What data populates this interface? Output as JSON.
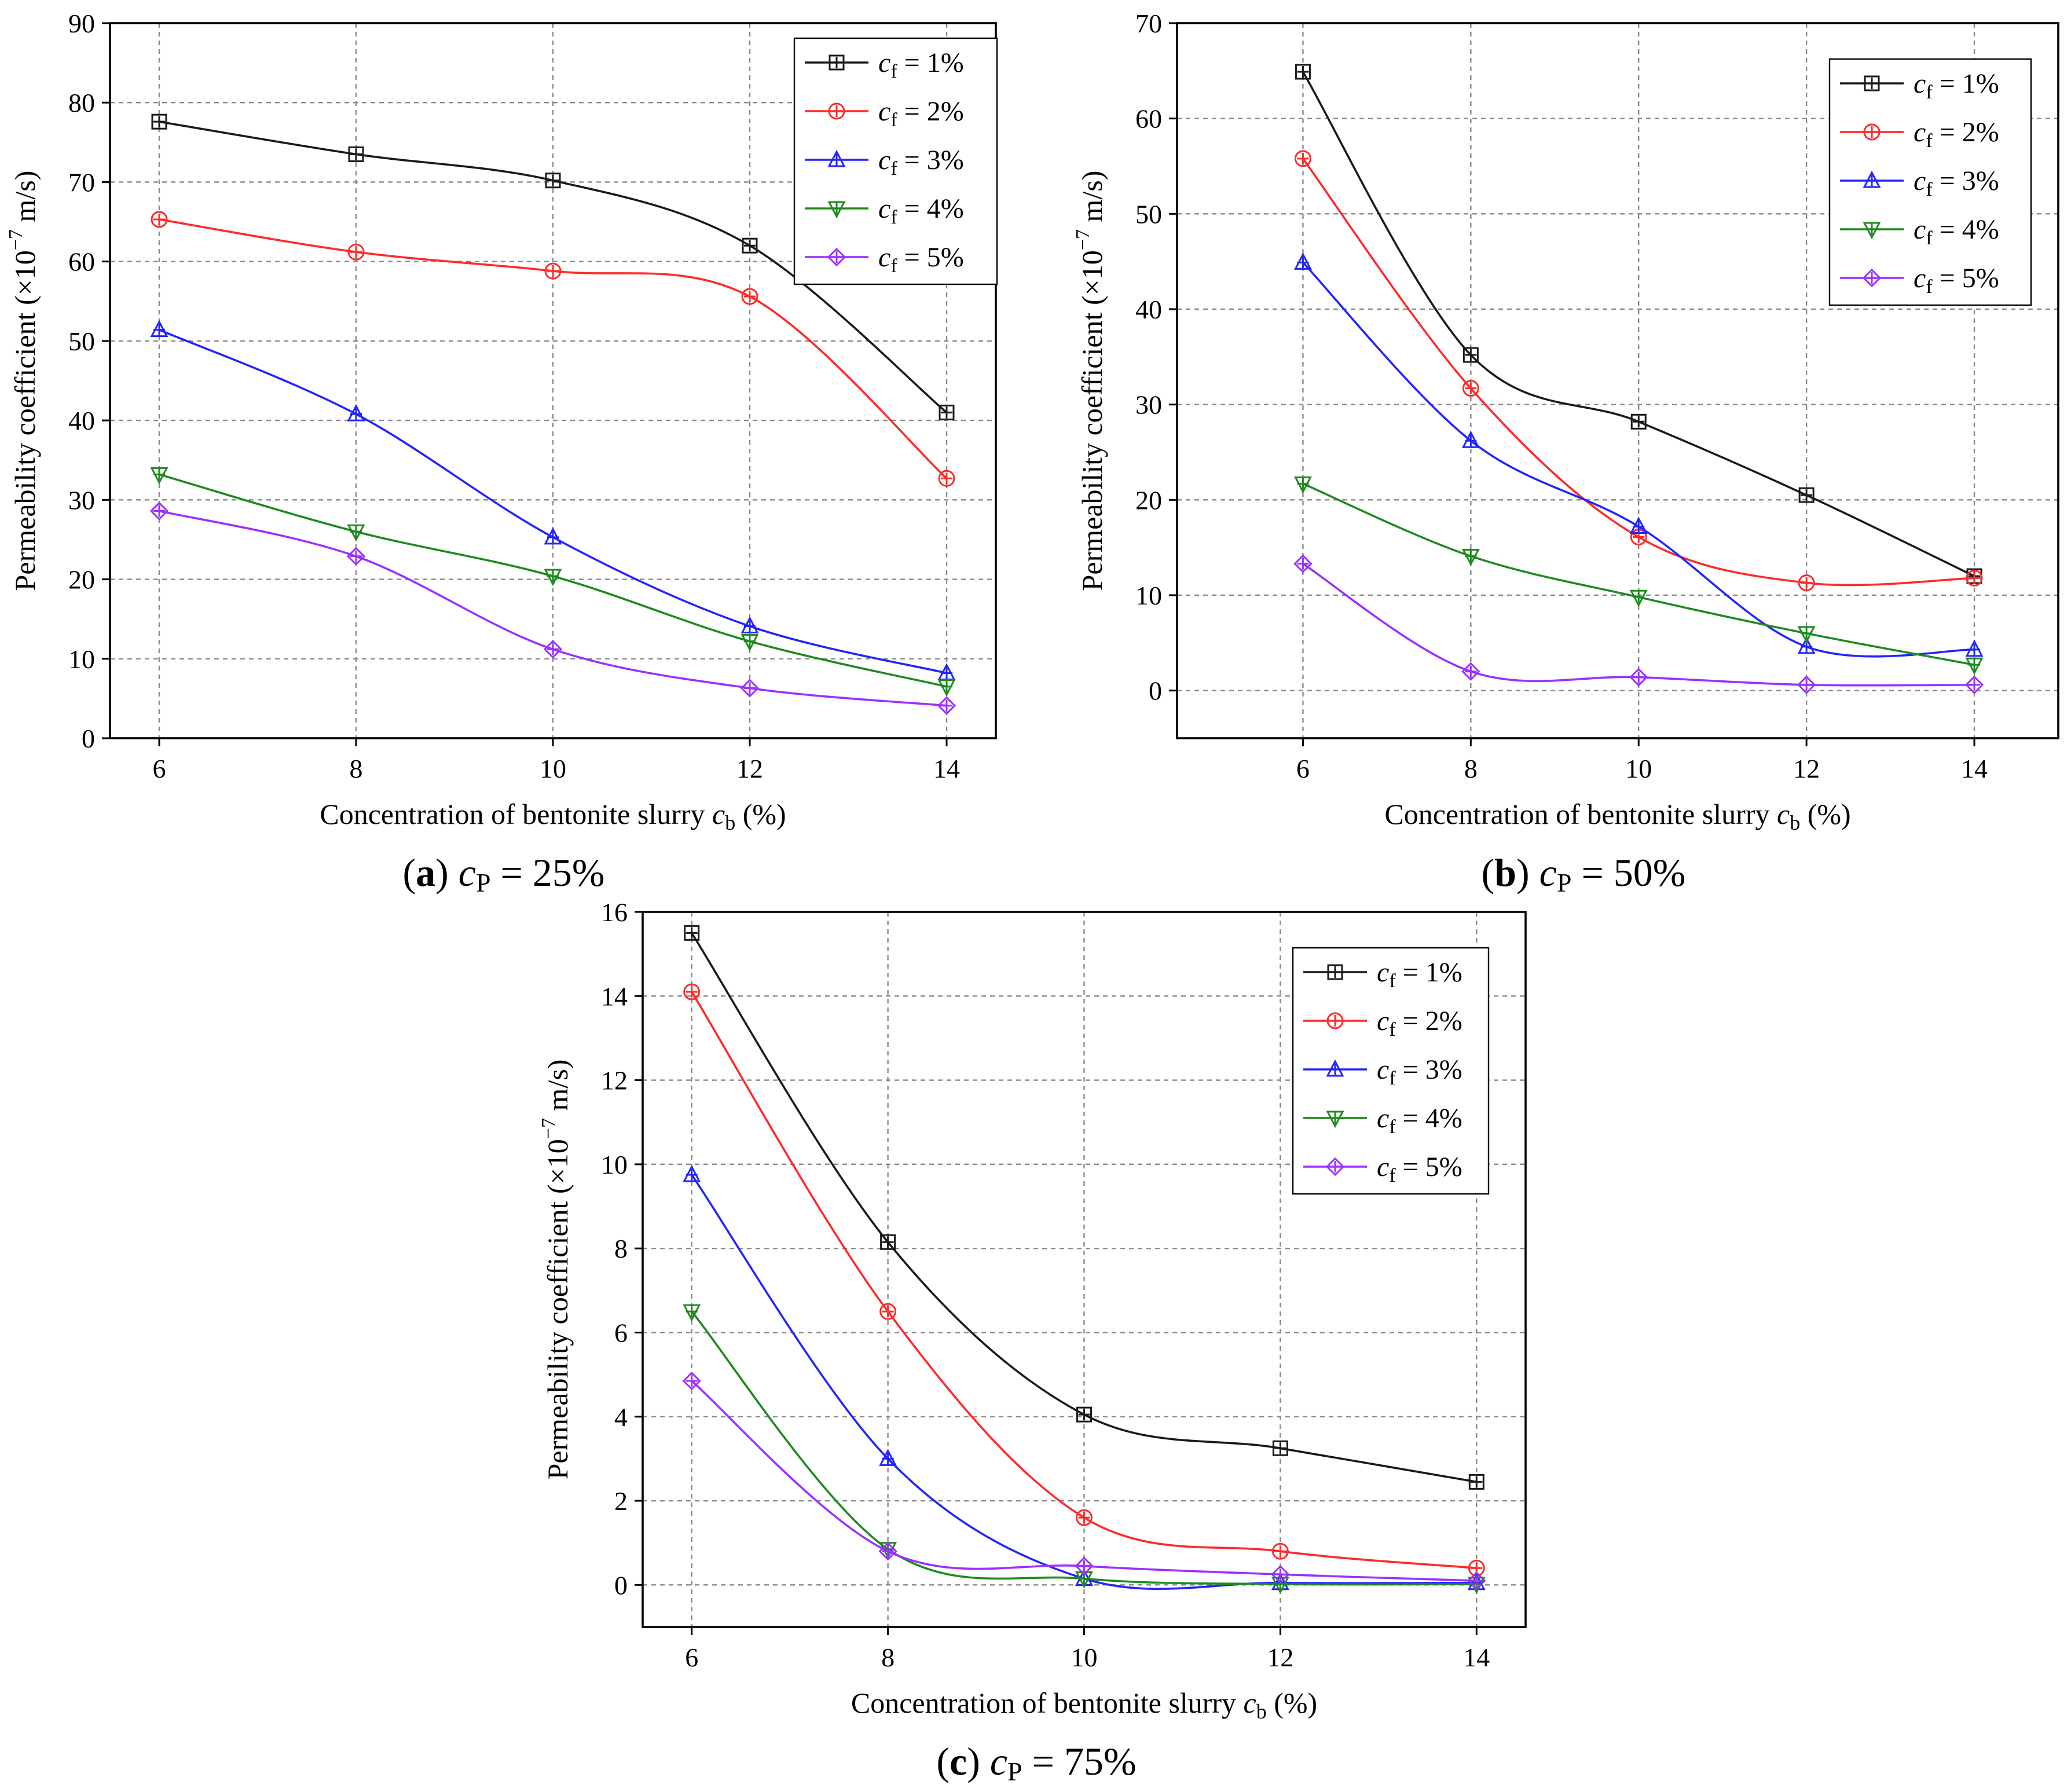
{
  "figure": {
    "x_axis_title": "Concentration of bentonite slurry",
    "x_axis_symbol": "c",
    "x_axis_symbol_sub": "b",
    "x_axis_unit": " (%)",
    "y_axis_title": "Permeability coefficient (×10",
    "y_axis_exp": "−7",
    "y_axis_unit": " m/s)",
    "legend_symbol": "c",
    "legend_symbol_sub": "f"
  },
  "colors": {
    "cf1": "#1a1a1a",
    "cf2": "#ff2a2a",
    "cf3": "#2424ff",
    "cf4": "#1f8a1f",
    "cf5": "#9b30ff"
  },
  "chart_data": [
    {
      "type": "line",
      "panel_letter": "(a)",
      "caption_symbol": "c",
      "caption_sub": "P",
      "caption_value": " = 25%",
      "x": [
        6,
        8,
        10,
        12,
        14
      ],
      "xticks": [
        "6",
        "8",
        "10",
        "12",
        "14"
      ],
      "xlim": [
        5.5,
        14.5
      ],
      "ylim": [
        0,
        90
      ],
      "yticks": [
        "0",
        "10",
        "20",
        "30",
        "40",
        "50",
        "60",
        "70",
        "80",
        "90"
      ],
      "grid": true,
      "legend_position": "top-right",
      "series": [
        {
          "name": "cf = 1%",
          "legend_value": " = 1%",
          "marker": "square",
          "color_key": "cf1",
          "values": [
            77.6,
            73.5,
            70.2,
            62.0,
            41.0
          ]
        },
        {
          "name": "cf = 2%",
          "legend_value": " = 2%",
          "marker": "circle",
          "color_key": "cf2",
          "values": [
            65.3,
            61.2,
            58.8,
            55.6,
            32.7
          ]
        },
        {
          "name": "cf = 3%",
          "legend_value": " = 3%",
          "marker": "triangle-up",
          "color_key": "cf3",
          "values": [
            51.4,
            40.8,
            25.3,
            14.1,
            8.2
          ]
        },
        {
          "name": "cf = 4%",
          "legend_value": " = 4%",
          "marker": "triangle-down",
          "color_key": "cf4",
          "values": [
            33.2,
            26.0,
            20.4,
            12.2,
            6.5
          ]
        },
        {
          "name": "cf = 5%",
          "legend_value": " = 5%",
          "marker": "diamond",
          "color_key": "cf5",
          "values": [
            28.6,
            22.9,
            11.2,
            6.3,
            4.1
          ]
        }
      ]
    },
    {
      "type": "line",
      "panel_letter": "(b)",
      "caption_symbol": "c",
      "caption_sub": "P",
      "caption_value": " = 50%",
      "x": [
        6,
        8,
        10,
        12,
        14
      ],
      "xticks": [
        "6",
        "8",
        "10",
        "12",
        "14"
      ],
      "xlim": [
        4.5,
        15.0
      ],
      "ylim": [
        -5,
        70
      ],
      "yticks": [
        "0",
        "10",
        "20",
        "30",
        "40",
        "50",
        "60",
        "70"
      ],
      "grid": true,
      "legend_position": "top-right",
      "series": [
        {
          "name": "cf = 1%",
          "legend_value": " = 1%",
          "marker": "square",
          "color_key": "cf1",
          "values": [
            64.9,
            35.2,
            28.2,
            20.5,
            12.0
          ]
        },
        {
          "name": "cf = 2%",
          "legend_value": " = 2%",
          "marker": "circle",
          "color_key": "cf2",
          "values": [
            55.8,
            31.7,
            16.1,
            11.3,
            11.8
          ]
        },
        {
          "name": "cf = 3%",
          "legend_value": " = 3%",
          "marker": "triangle-up",
          "color_key": "cf3",
          "values": [
            44.9,
            26.2,
            17.2,
            4.6,
            4.3
          ]
        },
        {
          "name": "cf = 4%",
          "legend_value": " = 4%",
          "marker": "triangle-down",
          "color_key": "cf4",
          "values": [
            21.7,
            14.1,
            9.8,
            6.0,
            2.7
          ]
        },
        {
          "name": "cf = 5%",
          "legend_value": " = 5%",
          "marker": "diamond",
          "color_key": "cf5",
          "values": [
            13.3,
            2.0,
            1.4,
            0.6,
            0.6
          ]
        }
      ]
    },
    {
      "type": "line",
      "panel_letter": "(c)",
      "caption_symbol": "c",
      "caption_sub": "P",
      "caption_value": " = 75%",
      "x": [
        6,
        8,
        10,
        12,
        14
      ],
      "xticks": [
        "6",
        "8",
        "10",
        "12",
        "14"
      ],
      "xlim": [
        5.5,
        14.5
      ],
      "ylim": [
        -1,
        16
      ],
      "yticks": [
        "0",
        "2",
        "4",
        "6",
        "8",
        "10",
        "12",
        "14",
        "16"
      ],
      "grid": true,
      "legend_position": "top-right",
      "series": [
        {
          "name": "cf = 1%",
          "legend_value": " = 1%",
          "marker": "square",
          "color_key": "cf1",
          "values": [
            15.5,
            8.15,
            4.05,
            3.25,
            2.45
          ]
        },
        {
          "name": "cf = 2%",
          "legend_value": " = 2%",
          "marker": "circle",
          "color_key": "cf2",
          "values": [
            14.1,
            6.5,
            1.6,
            0.8,
            0.4
          ]
        },
        {
          "name": "cf = 3%",
          "legend_value": " = 3%",
          "marker": "triangle-up",
          "color_key": "cf3",
          "values": [
            9.75,
            3.0,
            0.15,
            0.05,
            0.05
          ]
        },
        {
          "name": "cf = 4%",
          "legend_value": " = 4%",
          "marker": "triangle-down",
          "color_key": "cf4",
          "values": [
            6.5,
            0.85,
            0.15,
            0.02,
            0.02
          ]
        },
        {
          "name": "cf = 5%",
          "legend_value": " = 5%",
          "marker": "diamond",
          "color_key": "cf5",
          "values": [
            4.85,
            0.8,
            0.45,
            0.25,
            0.1
          ]
        }
      ]
    }
  ]
}
